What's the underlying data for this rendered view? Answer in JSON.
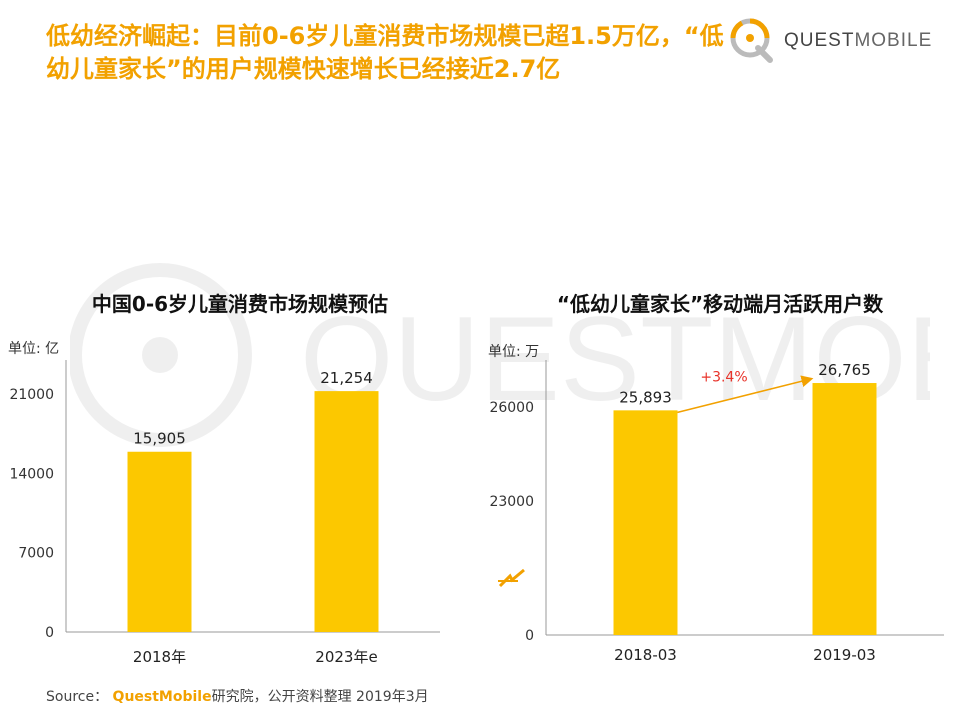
{
  "header": {
    "title": "低幼经济崛起：目前0-6岁儿童消费市场规模已超1.5万亿，“低幼儿童家长”的用户规模快速增长已经接近2.7亿",
    "logo_text_bold": "QUEST",
    "logo_text_light": "MOBILE",
    "brand_color": "#f2a100"
  },
  "watermark_text": "QUESTMOBILE",
  "chart_data": [
    {
      "type": "bar",
      "title": "中国0-6岁儿童消费市场规模预估",
      "unit_label": "单位: 亿",
      "categories": [
        "2018年",
        "2023年e"
      ],
      "values": [
        15905,
        21254
      ],
      "value_labels": [
        "15,905",
        "21,254"
      ],
      "ylim": [
        0,
        24000
      ],
      "yticks": [
        0,
        7000,
        14000,
        21000
      ],
      "ytick_labels": [
        "0",
        "7000",
        "14000",
        "21000"
      ],
      "bar_color": "#fcc800",
      "grid": false
    },
    {
      "type": "bar",
      "title": "“低幼儿童家长”移动端月活跃用户数",
      "unit_label": "单位: 万",
      "categories": [
        "2018-03",
        "2019-03"
      ],
      "values": [
        25893,
        26765
      ],
      "value_labels": [
        "25,893",
        "26,765"
      ],
      "axis_break": true,
      "ylim": [
        20000,
        27500
      ],
      "yticks": [
        0,
        23000,
        26000
      ],
      "ytick_labels": [
        "0",
        "23000",
        "26000"
      ],
      "growth_label": "+3.4%",
      "growth_color": "#e8332a",
      "bar_color": "#fcc800",
      "grid": false
    }
  ],
  "footer": {
    "source_label": "Source：",
    "source_brand": "QuestMobile",
    "source_rest": "研究院，公开资料整理 2019年3月"
  }
}
